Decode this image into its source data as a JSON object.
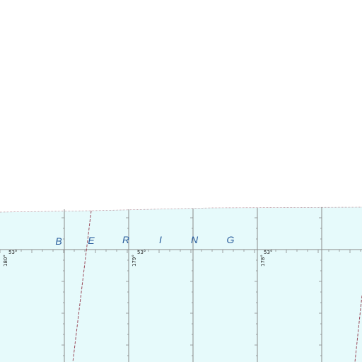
{
  "map": {
    "sea_name_letters": [
      "B",
      "E",
      "R",
      "I",
      "N",
      "G"
    ],
    "latitude_labels": [
      "53°",
      "53°",
      "53°"
    ],
    "longitude_labels": [
      "180°",
      "179°",
      "178°"
    ],
    "colors": {
      "sea": "#e6fafb",
      "land_blank": "#ffffff",
      "graticule": "#8a8a8a",
      "boundary_dashed": "#9a4a5a",
      "sea_label": "#2a5d9c"
    },
    "boundary_line_style": "dashed"
  }
}
